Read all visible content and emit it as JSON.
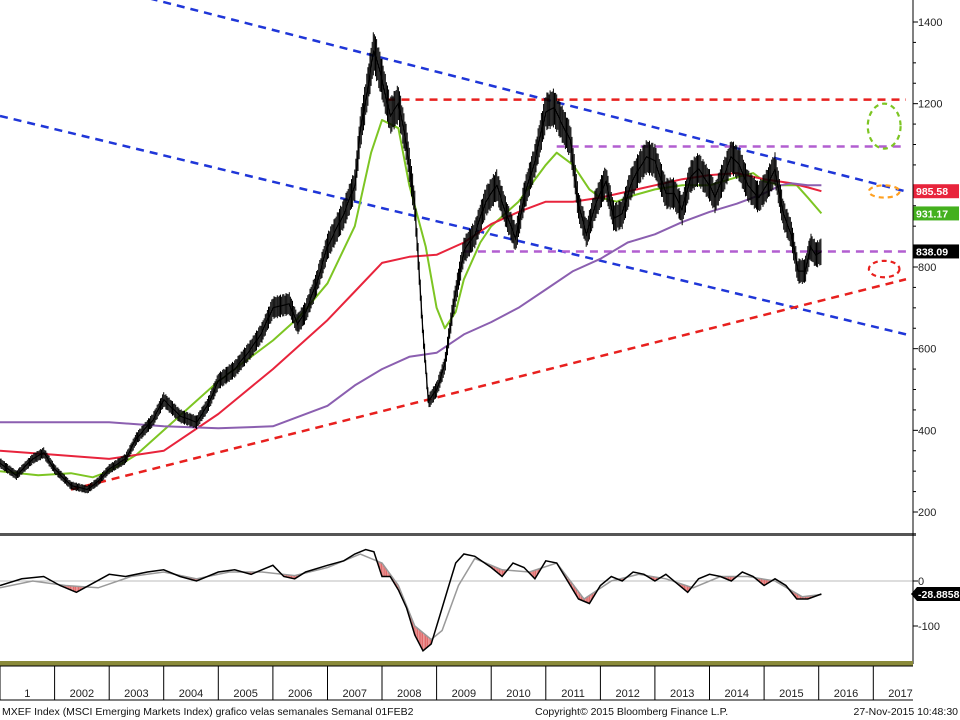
{
  "footer": {
    "left": "MXEF Index (MSCI Emerging Markets Index) grafico velas semanales  Semanal 01FEB2",
    "center": "Copyright© 2015 Bloomberg Finance L.P.",
    "right": "27-Nov-2015 10:48:30"
  },
  "chart_data": [
    {
      "type": "line",
      "title": "",
      "x_range": [
        2001.0,
        2017.6
      ],
      "ylim": [
        150,
        1450
      ],
      "y_ticks": [
        200,
        400,
        600,
        800,
        1000,
        1200,
        1400
      ],
      "y_tick_labels": [
        "200",
        "400",
        "600",
        "800",
        "",
        "1200",
        "1400"
      ],
      "x_tick_labels": [
        "1",
        "2002",
        "2003",
        "2004",
        "2005",
        "2006",
        "2007",
        "2008",
        "2009",
        "2010",
        "2011",
        "2012",
        "2013",
        "2014",
        "2015",
        "2016",
        "2017"
      ],
      "series": [
        {
          "role": "price",
          "color": "#000000",
          "x": [
            2001.0,
            2001.3,
            2001.6,
            2001.8,
            2002.0,
            2002.3,
            2002.6,
            2002.8,
            2003.0,
            2003.3,
            2003.5,
            2003.8,
            2004.0,
            2004.3,
            2004.6,
            2004.8,
            2005.0,
            2005.3,
            2005.6,
            2005.8,
            2006.0,
            2006.3,
            2006.45,
            2006.6,
            2006.8,
            2007.0,
            2007.3,
            2007.5,
            2007.6,
            2007.75,
            2007.85,
            2008.0,
            2008.15,
            2008.3,
            2008.45,
            2008.6,
            2008.75,
            2008.85,
            2009.0,
            2009.15,
            2009.3,
            2009.5,
            2009.7,
            2009.9,
            2010.1,
            2010.3,
            2010.45,
            2010.6,
            2010.8,
            2011.0,
            2011.15,
            2011.3,
            2011.45,
            2011.6,
            2011.75,
            2011.9,
            2012.1,
            2012.25,
            2012.4,
            2012.55,
            2012.7,
            2012.85,
            2013.0,
            2013.2,
            2013.35,
            2013.5,
            2013.65,
            2013.8,
            2014.0,
            2014.1,
            2014.25,
            2014.4,
            2014.55,
            2014.7,
            2014.9,
            2015.05,
            2015.2,
            2015.35,
            2015.5,
            2015.62,
            2015.75,
            2015.85,
            2015.95,
            2016.05
          ],
          "y": [
            320,
            290,
            330,
            345,
            305,
            265,
            255,
            275,
            305,
            330,
            380,
            425,
            475,
            435,
            420,
            460,
            520,
            550,
            600,
            640,
            700,
            710,
            660,
            690,
            760,
            850,
            930,
            1000,
            1130,
            1250,
            1330,
            1260,
            1170,
            1200,
            1100,
            950,
            640,
            470,
            500,
            560,
            700,
            840,
            880,
            960,
            1000,
            920,
            870,
            970,
            1060,
            1180,
            1190,
            1150,
            1110,
            950,
            880,
            950,
            1010,
            920,
            930,
            1000,
            1040,
            1070,
            1060,
            980,
            980,
            940,
            1020,
            1040,
            1000,
            970,
            1020,
            1070,
            1050,
            1000,
            970,
            1000,
            1040,
            930,
            880,
            790,
            790,
            850,
            830,
            838
          ]
        },
        {
          "role": "moving-average",
          "color": "#7dc523",
          "x": [
            2001.0,
            2001.7,
            2002.3,
            2002.7,
            2003.0,
            2003.5,
            2004.0,
            2004.5,
            2005.0,
            2005.5,
            2006.0,
            2006.5,
            2007.0,
            2007.5,
            2007.8,
            2008.0,
            2008.3,
            2008.5,
            2008.8,
            2009.0,
            2009.15,
            2009.35,
            2009.5,
            2009.8,
            2010.0,
            2010.5,
            2011.0,
            2011.2,
            2011.5,
            2011.8,
            2012.0,
            2012.3,
            2012.6,
            2013.0,
            2013.5,
            2014.0,
            2014.5,
            2014.8,
            2015.0,
            2015.3,
            2015.6,
            2015.8,
            2016.05
          ],
          "y": [
            300,
            290,
            295,
            285,
            300,
            340,
            400,
            460,
            520,
            570,
            620,
            680,
            760,
            900,
            1080,
            1160,
            1140,
            1000,
            850,
            700,
            650,
            690,
            770,
            860,
            900,
            960,
            1050,
            1080,
            1050,
            990,
            970,
            960,
            975,
            990,
            1000,
            1000,
            1020,
            1030,
            1010,
            1000,
            1000,
            970,
            931.17
          ]
        },
        {
          "role": "moving-average",
          "color": "#e8243c",
          "x": [
            2001.0,
            2002.0,
            2003.0,
            2004.0,
            2005.0,
            2006.0,
            2007.0,
            2007.5,
            2008.0,
            2008.5,
            2009.0,
            2009.5,
            2010.0,
            2010.5,
            2011.0,
            2011.5,
            2012.0,
            2012.5,
            2013.0,
            2013.5,
            2014.0,
            2014.5,
            2015.0,
            2015.5,
            2015.8,
            2016.05
          ],
          "y": [
            350,
            340,
            330,
            350,
            440,
            550,
            670,
            740,
            810,
            825,
            830,
            860,
            905,
            935,
            960,
            960,
            970,
            985,
            1000,
            1015,
            1025,
            1030,
            1015,
            1005,
            995,
            985.58
          ]
        },
        {
          "role": "moving-average",
          "color": "#8b5fb0",
          "x": [
            2001.0,
            2003.0,
            2004.0,
            2005.0,
            2006.0,
            2007.0,
            2007.5,
            2008.0,
            2008.5,
            2009.0,
            2009.5,
            2010.0,
            2010.5,
            2011.0,
            2011.5,
            2012.0,
            2012.5,
            2013.0,
            2013.5,
            2014.0,
            2014.5,
            2015.0,
            2015.3,
            2015.5,
            2015.8,
            2016.05
          ],
          "y": [
            420,
            420,
            410,
            405,
            410,
            460,
            510,
            550,
            580,
            590,
            635,
            665,
            700,
            745,
            790,
            820,
            860,
            880,
            910,
            935,
            955,
            980,
            1000,
            1005,
            1000,
            1000
          ]
        }
      ],
      "annotations": {
        "lines": [
          {
            "color": "#1f36d8",
            "dash": true,
            "x": [
              2002.5,
              2017.6
            ],
            "y": [
              1500,
              985
            ]
          },
          {
            "color": "#1f36d8",
            "dash": true,
            "x": [
              2001.0,
              2017.6
            ],
            "y": [
              1170,
              635
            ]
          },
          {
            "color": "#e8201e",
            "dash": true,
            "x": [
              2002.3,
              2017.6
            ],
            "y": [
              255,
              770
            ]
          },
          {
            "color": "#e8201e",
            "dash": true,
            "x": [
              2008.1,
              2017.6
            ],
            "y": [
              1210,
              1210
            ]
          },
          {
            "color": "#b25ed0",
            "dash": true,
            "x": [
              2011.2,
              2017.6
            ],
            "y": [
              1095,
              1095
            ]
          },
          {
            "color": "#b25ed0",
            "dash": true,
            "x": [
              2009.5,
              2017.6
            ],
            "y": [
              838,
              838
            ]
          }
        ],
        "ellipses": [
          {
            "color": "#7dc523",
            "x": 2017.2,
            "y": 1145,
            "rx": 0.3,
            "ry": 55
          },
          {
            "color": "#ffa020",
            "x": 2017.2,
            "y": 985,
            "rx": 0.28,
            "ry": 15
          },
          {
            "color": "#e8201e",
            "x": 2017.2,
            "y": 795,
            "rx": 0.28,
            "ry": 20
          }
        ]
      },
      "value_tags": [
        {
          "label": "985.58",
          "value": 985.58,
          "bg": "#e8243c",
          "fg": "#ffffff"
        },
        {
          "label": "931.17",
          "value": 931.17,
          "bg": "#44b01e",
          "fg": "#ffffff"
        },
        {
          "label": "838.09",
          "value": 838.09,
          "bg": "#000000",
          "fg": "#ffffff"
        }
      ]
    },
    {
      "type": "line",
      "title": "",
      "ylim": [
        -170,
        110
      ],
      "y_ticks": [
        -100,
        0
      ],
      "y_tick_labels": [
        "-100",
        "0"
      ],
      "series": [
        {
          "role": "oscillator",
          "color": "#000000",
          "x": [
            2001.0,
            2001.4,
            2001.8,
            2002.1,
            2002.4,
            2002.7,
            2003.0,
            2003.3,
            2003.7,
            2004.0,
            2004.3,
            2004.6,
            2005.0,
            2005.3,
            2005.6,
            2006.0,
            2006.2,
            2006.4,
            2006.6,
            2007.0,
            2007.3,
            2007.5,
            2007.7,
            2007.85,
            2008.0,
            2008.15,
            2008.3,
            2008.45,
            2008.6,
            2008.75,
            2008.9,
            2009.05,
            2009.2,
            2009.35,
            2009.5,
            2009.7,
            2010.0,
            2010.2,
            2010.4,
            2010.6,
            2010.8,
            2011.0,
            2011.2,
            2011.4,
            2011.6,
            2011.8,
            2012.0,
            2012.2,
            2012.4,
            2012.6,
            2012.8,
            2013.0,
            2013.2,
            2013.4,
            2013.6,
            2013.8,
            2014.0,
            2014.2,
            2014.4,
            2014.6,
            2014.8,
            2015.0,
            2015.2,
            2015.4,
            2015.6,
            2015.8,
            2016.05
          ],
          "y": [
            -10,
            5,
            10,
            -10,
            -25,
            -5,
            15,
            10,
            20,
            25,
            10,
            0,
            20,
            25,
            15,
            35,
            10,
            5,
            20,
            35,
            45,
            60,
            70,
            65,
            10,
            10,
            -20,
            -60,
            -120,
            -155,
            -140,
            -80,
            -20,
            40,
            60,
            55,
            30,
            10,
            40,
            30,
            5,
            45,
            40,
            0,
            -40,
            -50,
            -10,
            10,
            0,
            20,
            15,
            0,
            15,
            -5,
            -25,
            5,
            15,
            10,
            0,
            20,
            10,
            -10,
            5,
            -10,
            -40,
            -40,
            -28.8858
          ]
        },
        {
          "role": "signal",
          "color": "#9a9a9a",
          "x": [
            2001.0,
            2001.6,
            2002.2,
            2002.8,
            2003.4,
            2004.0,
            2004.6,
            2005.2,
            2005.8,
            2006.4,
            2007.0,
            2007.6,
            2008.0,
            2008.3,
            2008.6,
            2008.9,
            2009.1,
            2009.4,
            2009.7,
            2010.2,
            2010.7,
            2011.2,
            2011.7,
            2012.2,
            2012.7,
            2013.2,
            2013.7,
            2014.2,
            2014.7,
            2015.2,
            2015.7,
            2016.05
          ],
          "y": [
            -15,
            0,
            -10,
            -15,
            10,
            20,
            5,
            20,
            20,
            12,
            30,
            60,
            40,
            -10,
            -100,
            -130,
            -110,
            -10,
            50,
            25,
            20,
            40,
            -40,
            0,
            15,
            5,
            -15,
            10,
            10,
            0,
            -35,
            -30
          ]
        }
      ],
      "value_tags": [
        {
          "label": "-28.8858",
          "value": -28.8858,
          "bg": "#000000",
          "fg": "#ffffff"
        }
      ]
    }
  ]
}
